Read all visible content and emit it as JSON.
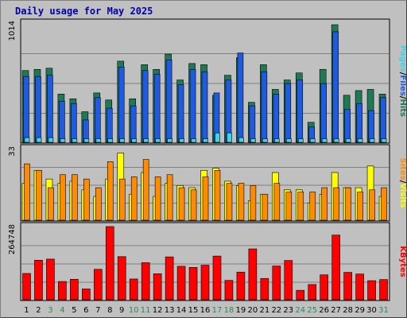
{
  "title": "Daily usage for May 2025",
  "colors": {
    "hits": "#1e7a55",
    "files": "#1f5be0",
    "pages": "#3dd3e8",
    "visits": "#ffff00",
    "sites": "#ff8c00",
    "kbytes": "#ff0000",
    "weekend_label": "#2e8b57",
    "weekday_label": "#000000"
  },
  "chart_data": [
    {
      "type": "bar",
      "name": "hits-files-pages",
      "categories": [
        "1",
        "2",
        "3",
        "4",
        "5",
        "6",
        "7",
        "8",
        "9",
        "10",
        "11",
        "12",
        "13",
        "14",
        "15",
        "16",
        "17",
        "18",
        "19",
        "20",
        "21",
        "22",
        "23",
        "24",
        "25",
        "26",
        "27",
        "28",
        "29",
        "30",
        "31"
      ],
      "weekend": [
        3,
        4,
        10,
        11,
        17,
        18,
        24,
        25,
        31
      ],
      "ylim": [
        0,
        1014
      ],
      "ytick_label": "1014",
      "series": [
        {
          "name": "Hits",
          "values": [
            610,
            620,
            630,
            410,
            370,
            260,
            420,
            360,
            690,
            370,
            660,
            620,
            750,
            530,
            670,
            660,
            400,
            570,
            720,
            340,
            660,
            450,
            530,
            590,
            170,
            620,
            1000,
            400,
            440,
            450,
            410
          ]
        },
        {
          "name": "Files",
          "values": [
            560,
            560,
            570,
            350,
            330,
            190,
            380,
            290,
            640,
            310,
            610,
            580,
            700,
            490,
            620,
            600,
            420,
            530,
            760,
            310,
            600,
            410,
            500,
            530,
            130,
            500,
            940,
            280,
            330,
            270,
            380
          ]
        },
        {
          "name": "Pages",
          "values": [
            40,
            40,
            40,
            30,
            30,
            30,
            30,
            30,
            30,
            30,
            30,
            30,
            30,
            30,
            30,
            30,
            80,
            80,
            40,
            30,
            30,
            30,
            30,
            30,
            30,
            30,
            30,
            30,
            30,
            30,
            30
          ]
        }
      ],
      "legend": [
        "Pages",
        "Files",
        "Hits"
      ]
    },
    {
      "type": "bar",
      "name": "visits-sites",
      "categories": [
        "1",
        "2",
        "3",
        "4",
        "5",
        "6",
        "7",
        "8",
        "9",
        "10",
        "11",
        "12",
        "13",
        "14",
        "15",
        "16",
        "17",
        "18",
        "19",
        "20",
        "21",
        "22",
        "23",
        "24",
        "25",
        "26",
        "27",
        "28",
        "29",
        "30",
        "31"
      ],
      "ylim": [
        0,
        33
      ],
      "ytick_label": "33",
      "series": [
        {
          "name": "Visits",
          "values": [
            17,
            23,
            19,
            17,
            18,
            14,
            11,
            19,
            31,
            12,
            22,
            11,
            17,
            16,
            15,
            23,
            24,
            18,
            16,
            9,
            12,
            22,
            14,
            14,
            8,
            12,
            22,
            15,
            15,
            25,
            11
          ]
        },
        {
          "name": "Sites",
          "values": [
            26,
            23,
            15,
            21,
            21,
            19,
            15,
            27,
            19,
            20,
            28,
            20,
            21,
            15,
            14,
            20,
            23,
            17,
            17,
            16,
            12,
            17,
            13,
            13,
            13,
            15,
            15,
            15,
            13,
            14,
            15
          ]
        }
      ],
      "legend": [
        "Sites",
        "Visits"
      ]
    },
    {
      "type": "bar",
      "name": "kbytes",
      "categories": [
        "1",
        "2",
        "3",
        "4",
        "5",
        "6",
        "7",
        "8",
        "9",
        "10",
        "11",
        "12",
        "13",
        "14",
        "15",
        "16",
        "17",
        "18",
        "19",
        "20",
        "21",
        "22",
        "23",
        "24",
        "25",
        "26",
        "27",
        "28",
        "29",
        "30",
        "31"
      ],
      "ylim": [
        0,
        264748
      ],
      "ytick_label": "264748",
      "series": [
        {
          "name": "KBytes",
          "values": [
            95000,
            143000,
            147000,
            66000,
            74000,
            39000,
            110000,
            264748,
            156000,
            75000,
            134000,
            94000,
            155000,
            121000,
            117000,
            125000,
            158000,
            70000,
            100000,
            184000,
            77000,
            122000,
            142000,
            34000,
            55000,
            90000,
            234000,
            99000,
            93000,
            69000,
            73000
          ]
        }
      ],
      "legend": [
        "KBytes"
      ]
    }
  ]
}
